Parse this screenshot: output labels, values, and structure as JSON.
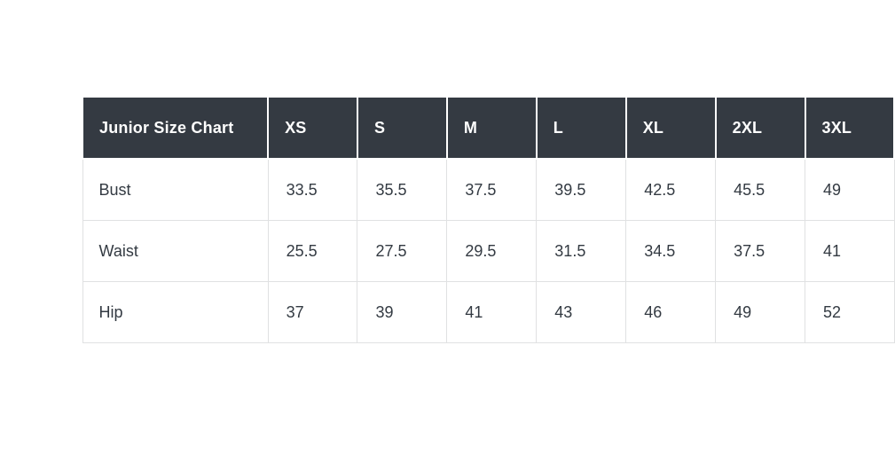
{
  "table": {
    "title": "Junior Size Chart",
    "columns": [
      "XS",
      "S",
      "M",
      "L",
      "XL",
      "2XL",
      "3XL"
    ],
    "rows": [
      {
        "label": "Bust",
        "values": [
          "33.5",
          "35.5",
          "37.5",
          "39.5",
          "42.5",
          "45.5",
          "49"
        ]
      },
      {
        "label": "Waist",
        "values": [
          "25.5",
          "27.5",
          "29.5",
          "31.5",
          "34.5",
          "37.5",
          "41"
        ]
      },
      {
        "label": "Hip",
        "values": [
          "37",
          "39",
          "41",
          "43",
          "46",
          "49",
          "52"
        ]
      }
    ],
    "colors": {
      "header_bg": "#343a42",
      "header_text": "#ffffff",
      "body_bg": "#ffffff",
      "body_text": "#333a42",
      "border": "#e0e1e2"
    }
  },
  "chart_data": {
    "type": "table",
    "title": "Junior Size Chart",
    "categories": [
      "XS",
      "S",
      "M",
      "L",
      "XL",
      "2XL",
      "3XL"
    ],
    "series": [
      {
        "name": "Bust",
        "values": [
          33.5,
          35.5,
          37.5,
          39.5,
          42.5,
          45.5,
          49
        ]
      },
      {
        "name": "Waist",
        "values": [
          25.5,
          27.5,
          29.5,
          31.5,
          34.5,
          37.5,
          41
        ]
      },
      {
        "name": "Hip",
        "values": [
          37,
          39,
          41,
          43,
          46,
          49,
          52
        ]
      }
    ],
    "layout": {
      "header_position": "top-row-and-first-column",
      "grid": true,
      "background": "#ffffff"
    }
  }
}
